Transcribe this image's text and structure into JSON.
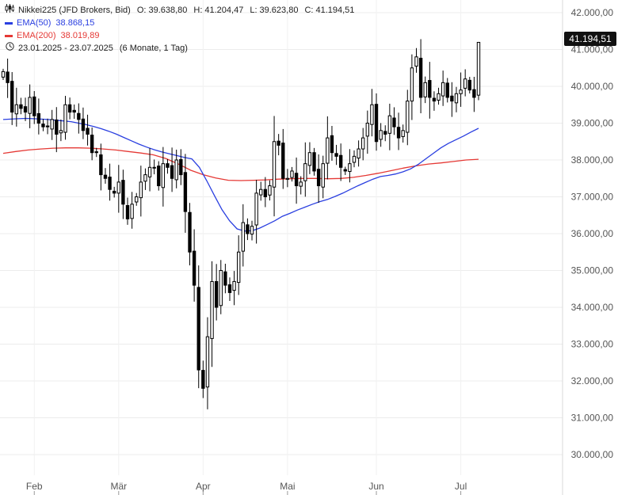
{
  "header": {
    "instrument": "Nikkei225 (JFD Brokers, Bid)",
    "ohlc": {
      "o_label": "O:",
      "o": "39.638,80",
      "h_label": "H:",
      "h": "41.204,47",
      "l_label": "L:",
      "l": "39.623,80",
      "c_label": "C:",
      "c": "41.194,51"
    },
    "ema50": {
      "label": "EMA(50)",
      "value": "38.868,15",
      "color": "#2a3fe0"
    },
    "ema200": {
      "label": "EMA(200)",
      "value": "38.019,89",
      "color": "#e53935"
    },
    "range": "23.01.2025 - 23.07.2025",
    "period": "(6 Monate, 1 Tag)",
    "chart_icon": "candlestick-icon",
    "clock_icon": "clock-icon"
  },
  "colors": {
    "candle": "#000000",
    "grid": "#ececec",
    "axis": "#d8d8d8",
    "price_tag_bg": "#111111",
    "price_tag_text": "#ffffff"
  },
  "chart_data": {
    "type": "candlestick",
    "ylim": [
      29500,
      42300
    ],
    "y_ticks": [
      30000,
      31000,
      32000,
      33000,
      34000,
      35000,
      36000,
      37000,
      38000,
      39000,
      40000,
      41000,
      42000
    ],
    "y_tick_labels": [
      "30.000,00",
      "31.000,00",
      "32.000,00",
      "33.000,00",
      "34.000,00",
      "35.000,00",
      "36.000,00",
      "37.000,00",
      "38.000,00",
      "39.000,00",
      "40.000,00",
      "41.000,00",
      "42.000,00"
    ],
    "x_labels": [
      {
        "label": "Feb",
        "index": 7
      },
      {
        "label": "Mär",
        "index": 26
      },
      {
        "label": "Apr",
        "index": 45
      },
      {
        "label": "Mai",
        "index": 64
      },
      {
        "label": "Jun",
        "index": 84
      },
      {
        "label": "Jul",
        "index": 103
      }
    ],
    "last_price_label": "41.194,51",
    "last_price": 41194.51,
    "closes": [
      40400,
      40100,
      39300,
      39500,
      39400,
      39300,
      39700,
      39200,
      39000,
      38900,
      38900,
      39100,
      38700,
      38800,
      39500,
      39300,
      39300,
      39100,
      38800,
      38700,
      38200,
      38200,
      37600,
      37500,
      37200,
      37100,
      37400,
      36800,
      36400,
      36800,
      37000,
      37400,
      37600,
      37800,
      37800,
      37300,
      37900,
      37800,
      37500,
      38000,
      37600,
      36600,
      35500,
      34600,
      32300,
      31800,
      33200,
      34700,
      34000,
      35000,
      34600,
      34400,
      34700,
      35500,
      36300,
      36000,
      36200,
      37100,
      37200,
      37000,
      37300,
      38500,
      38400,
      37500,
      37500,
      37700,
      37300,
      37400,
      37900,
      38200,
      37700,
      37300,
      37900,
      38600,
      38200,
      38100,
      37800,
      37700,
      37900,
      38100,
      38300,
      38600,
      39000,
      39500,
      38500,
      38800,
      38700,
      39200,
      38900,
      38600,
      38800,
      39600,
      40500,
      40800,
      39700,
      40100,
      39700,
      39600,
      39800,
      40100,
      39700,
      39600,
      39800,
      39900,
      40200,
      39900,
      39700,
      41194.51
    ],
    "ema50": [
      39100,
      39110,
      39120,
      39130,
      39120,
      39110,
      39100,
      39080,
      39060,
      39040,
      39000,
      38960,
      38910,
      38850,
      38780,
      38700,
      38610,
      38520,
      38430,
      38350,
      38280,
      38220,
      38170,
      38120,
      38070,
      38030,
      37800,
      37430,
      37030,
      36650,
      36350,
      36130,
      36070,
      36080,
      36150,
      36250,
      36350,
      36470,
      36550,
      36640,
      36720,
      36800,
      36870,
      36930,
      37010,
      37100,
      37200,
      37300,
      37390,
      37480,
      37550,
      37580,
      37620,
      37680,
      37760,
      37880,
      38030,
      38180,
      38330,
      38450,
      38550,
      38650,
      38760,
      38860
    ],
    "ema200": [
      38180,
      38230,
      38270,
      38300,
      38320,
      38330,
      38330,
      38320,
      38300,
      38270,
      38230,
      38190,
      38140,
      38040,
      37890,
      37720,
      37600,
      37510,
      37450,
      37440,
      37450,
      37460,
      37480,
      37490,
      37500,
      37500,
      37490,
      37500,
      37530,
      37580,
      37640,
      37710,
      37780,
      37840,
      37890,
      37920,
      37960,
      38000,
      38020
    ]
  }
}
